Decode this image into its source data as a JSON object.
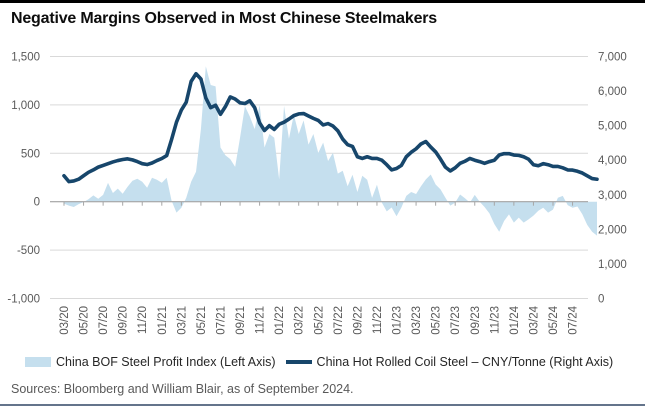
{
  "title": "Negative Margins Observed in Most Chinese Steelmakers",
  "source_note": "Sources: Bloomberg and William Blair, as of September 2024.",
  "legend": {
    "area_label": "China BOF Steel Profit Index (Left Axis)",
    "line_label": "China Hot Rolled Coil Steel – CNY/Tonne (Right Axis)"
  },
  "colors": {
    "area": "#c5dfee",
    "line": "#17466b",
    "grid": "#d9d9d9",
    "axis": "#a6a6a6",
    "tick_text": "#595959",
    "title_text": "#0d0d0d"
  },
  "chart_data": {
    "type": "area+line combo, dual axis",
    "grid": true,
    "legend_position": "bottom",
    "x_tick_labels": [
      "03/20",
      "05/20",
      "07/20",
      "09/20",
      "11/20",
      "01/21",
      "03/21",
      "05/21",
      "07/21",
      "09/21",
      "11/21",
      "01/22",
      "03/22",
      "05/22",
      "07/22",
      "09/22",
      "11/22",
      "01/23",
      "03/23",
      "05/23",
      "07/23",
      "09/23",
      "11/23",
      "01/24",
      "03/24",
      "05/24",
      "07/24"
    ],
    "x_range_note": "semi-monthly points, Mar 2020 through Sep 2024",
    "left_axis": {
      "min": -1000,
      "max": 1500,
      "tick_labels": [
        "1,500",
        "1,000",
        "500",
        "0",
        "-500",
        "-1,000"
      ],
      "tick_values": [
        1500,
        1000,
        500,
        0,
        -500,
        -1000
      ]
    },
    "right_axis": {
      "min": 0,
      "max": 7000,
      "tick_labels": [
        "7,000",
        "6,000",
        "5,000",
        "4,000",
        "3,000",
        "2,000",
        "1,000",
        "0"
      ],
      "tick_values": [
        7000,
        6000,
        5000,
        4000,
        3000,
        2000,
        1000,
        0
      ]
    },
    "series": [
      {
        "name": "China BOF Steel Profit Index (Left Axis)",
        "type": "area",
        "axis": "left",
        "color": "#c5dfee",
        "values": [
          -20,
          -40,
          -55,
          -25,
          -5,
          25,
          65,
          30,
          70,
          195,
          90,
          135,
          82,
          155,
          216,
          237,
          206,
          144,
          247,
          227,
          196,
          247,
          10,
          -113,
          -62,
          41,
          206,
          310,
          750,
          1399,
          1205,
          1192,
          560,
          480,
          440,
          360,
          660,
          986,
          880,
          750,
          1000,
          560,
          700,
          660,
          230,
          990,
          650,
          900,
          700,
          840,
          590,
          700,
          505,
          610,
          420,
          505,
          290,
          320,
          160,
          278,
          100,
          268,
          227,
          40,
          175,
          -10,
          -100,
          -60,
          -150,
          -60,
          60,
          100,
          80,
          160,
          230,
          281,
          178,
          127,
          41,
          -41,
          -10,
          75,
          35,
          -10,
          70,
          0,
          -55,
          -120,
          -230,
          -310,
          -200,
          -131,
          -216,
          -165,
          -216,
          -182,
          -144,
          -93,
          -62,
          -113,
          -82,
          41,
          60,
          -35,
          -62,
          -50,
          -130,
          -240,
          -310,
          -350
        ]
      },
      {
        "name": "China Hot Rolled Coil Steel – CNY/Tonne (Right Axis)",
        "type": "line",
        "axis": "right",
        "color": "#17466b",
        "values": [
          3550,
          3380,
          3400,
          3450,
          3550,
          3650,
          3720,
          3800,
          3850,
          3900,
          3950,
          3990,
          4020,
          4040,
          4010,
          3960,
          3900,
          3875,
          3920,
          3990,
          4050,
          4135,
          4600,
          5100,
          5450,
          5680,
          6280,
          6500,
          6350,
          5800,
          5520,
          5590,
          5330,
          5550,
          5830,
          5770,
          5660,
          5640,
          5720,
          5520,
          5080,
          4860,
          5000,
          4890,
          5040,
          5100,
          5190,
          5290,
          5340,
          5350,
          5280,
          5210,
          5150,
          5020,
          5060,
          4990,
          4850,
          4610,
          4450,
          4400,
          4100,
          4050,
          4100,
          4050,
          4050,
          4000,
          3870,
          3720,
          3760,
          3850,
          4100,
          4230,
          4330,
          4470,
          4540,
          4380,
          4240,
          4030,
          3800,
          3690,
          3780,
          3910,
          3970,
          4050,
          4000,
          3960,
          3910,
          3960,
          4000,
          4150,
          4190,
          4190,
          4150,
          4140,
          4100,
          4030,
          3870,
          3840,
          3900,
          3870,
          3820,
          3820,
          3780,
          3720,
          3715,
          3680,
          3630,
          3550,
          3470,
          3450
        ]
      }
    ]
  }
}
